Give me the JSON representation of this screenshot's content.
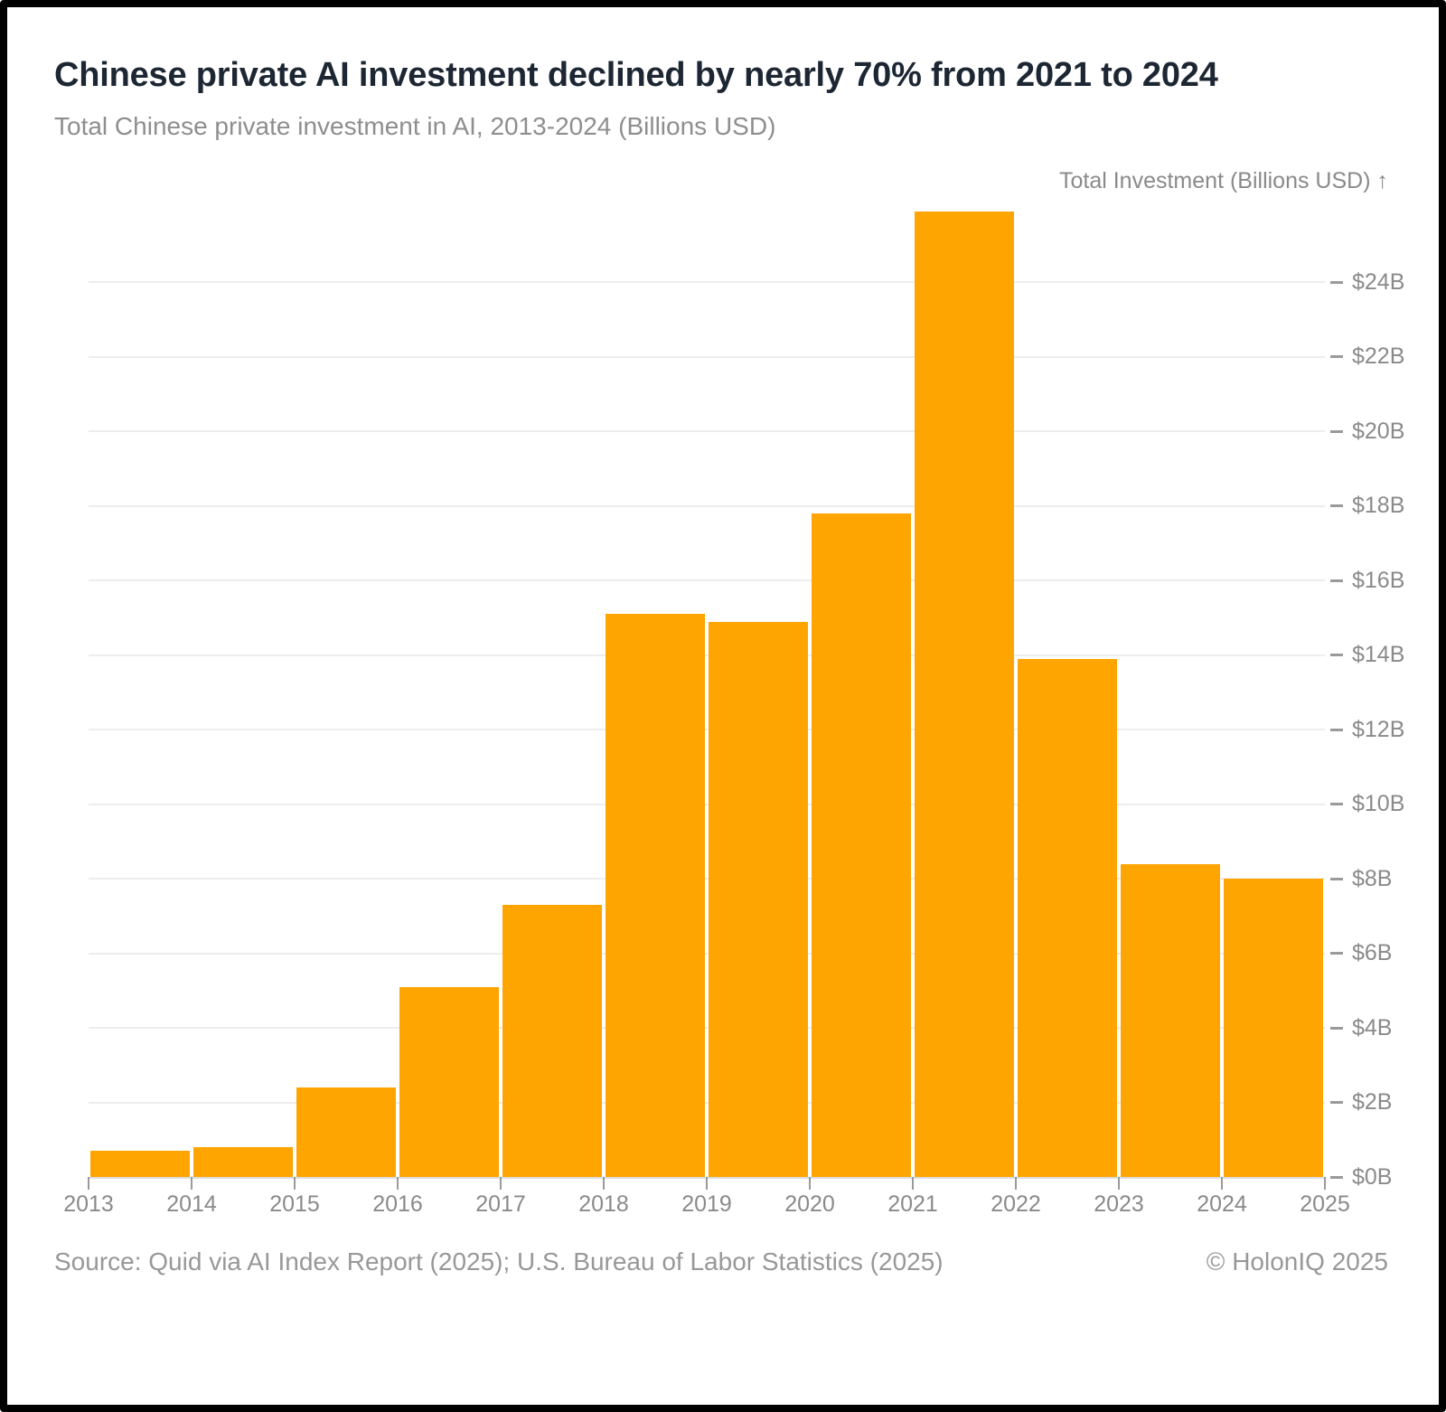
{
  "header": {
    "title": "Chinese private AI investment declined by nearly 70% from 2021 to 2024",
    "subtitle": "Total Chinese private investment in AI, 2013-2024 (Billions USD)"
  },
  "axis_note": "Total Investment (Billions USD) ↑",
  "footer": {
    "source": "Source: Quid via AI Index Report (2025); U.S. Bureau of Labor Statistics (2025)",
    "copyright": "© HolonIQ 2025"
  },
  "colors": {
    "bar": "#FFA502",
    "title_text": "#1D2733",
    "muted_text": "#8E8E8E",
    "axis_text": "#8A8A8A",
    "gridline": "#EDEDED",
    "baseline": "#DCDCDC",
    "tick": "#9A9A9A",
    "frame": "#000000",
    "background": "#FFFFFF"
  },
  "chart_data": {
    "type": "bar",
    "title": "Chinese private AI investment declined by nearly 70% from 2021 to 2024",
    "subtitle": "Total Chinese private investment in AI, 2013-2024 (Billions USD)",
    "ylabel": "Total Investment (Billions USD)",
    "xlabel": "",
    "categories": [
      "2013",
      "2014",
      "2015",
      "2016",
      "2017",
      "2018",
      "2019",
      "2020",
      "2021",
      "2022",
      "2023",
      "2024"
    ],
    "values": [
      0.7,
      0.8,
      2.4,
      5.1,
      7.3,
      15.1,
      14.9,
      17.8,
      25.9,
      13.9,
      8.4,
      8.0
    ],
    "x_axis_labels": [
      "2013",
      "2014",
      "2015",
      "2016",
      "2017",
      "2018",
      "2019",
      "2020",
      "2021",
      "2022",
      "2023",
      "2024",
      "2025"
    ],
    "y_ticks": [
      {
        "value": 0,
        "label": "$0B"
      },
      {
        "value": 2,
        "label": "$2B"
      },
      {
        "value": 4,
        "label": "$4B"
      },
      {
        "value": 6,
        "label": "$6B"
      },
      {
        "value": 8,
        "label": "$8B"
      },
      {
        "value": 10,
        "label": "$10B"
      },
      {
        "value": 12,
        "label": "$12B"
      },
      {
        "value": 14,
        "label": "$14B"
      },
      {
        "value": 16,
        "label": "$16B"
      },
      {
        "value": 18,
        "label": "$18B"
      },
      {
        "value": 20,
        "label": "$20B"
      },
      {
        "value": 22,
        "label": "$22B"
      },
      {
        "value": 24,
        "label": "$24B"
      }
    ],
    "ylim": [
      0,
      26
    ],
    "grid": "horizontal",
    "legend": "none",
    "bar_color": "#FFA502"
  }
}
